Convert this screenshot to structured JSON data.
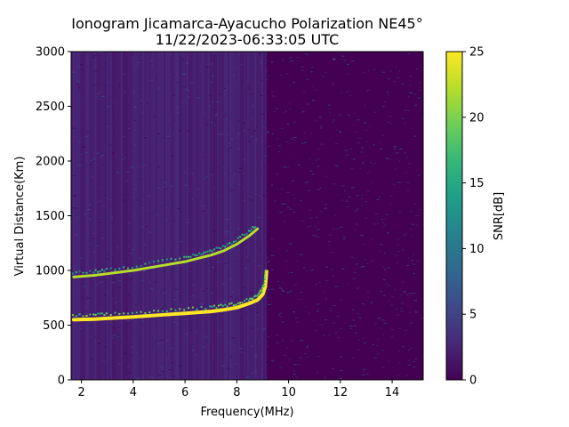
{
  "chart_data": {
    "type": "heatmap",
    "title": "Ionogram Jicamarca-Ayacucho Polarization NE45°",
    "subtitle": "11/22/2023-06:33:05 UTC",
    "xlabel": "Frequency(MHz)",
    "ylabel": "Virtual Distance(Km)",
    "xlim": [
      1.6,
      15.2
    ],
    "ylim": [
      0,
      3000
    ],
    "xticks": [
      2,
      4,
      6,
      8,
      10,
      12,
      14
    ],
    "yticks": [
      0,
      500,
      1000,
      1500,
      2000,
      2500,
      3000
    ],
    "colorbar": {
      "label": "SNR[dB]",
      "range": [
        0,
        25
      ],
      "ticks": [
        0,
        5,
        10,
        15,
        20,
        25
      ],
      "colormap": "viridis"
    },
    "colormap_stops": [
      "#440154",
      "#482878",
      "#3e4989",
      "#31688e",
      "#26828e",
      "#1f9e89",
      "#35b779",
      "#6ece58",
      "#b5de2b",
      "#fde725"
    ],
    "noise_band_upper_frequency_mhz": 9.1,
    "traces": [
      {
        "x": [
          1.7,
          2.5,
          3.0,
          4.0,
          5.0,
          6.0,
          7.0,
          7.5,
          8.0,
          8.5,
          8.8,
          9.0,
          9.1,
          9.15
        ],
        "y": [
          550,
          555,
          562,
          575,
          592,
          608,
          625,
          640,
          660,
          700,
          730,
          780,
          850,
          990
        ],
        "snr": 25
      },
      {
        "x": [
          1.7,
          2.5,
          3.0,
          4.0,
          5.0,
          6.0,
          6.5,
          7.0,
          7.5,
          8.0,
          8.5,
          8.8
        ],
        "y": [
          940,
          955,
          970,
          1000,
          1040,
          1080,
          1110,
          1140,
          1180,
          1240,
          1320,
          1380
        ],
        "snr": 22
      }
    ]
  }
}
